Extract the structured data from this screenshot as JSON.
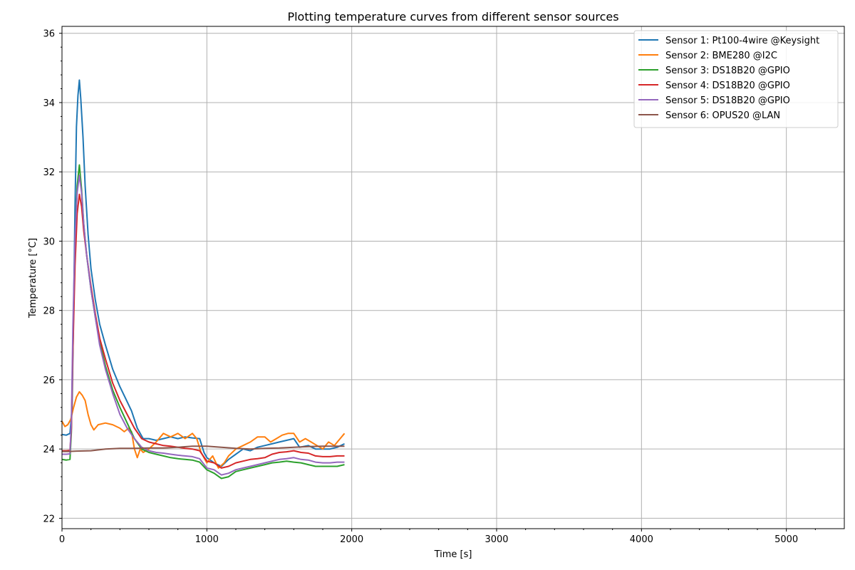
{
  "chart_data": {
    "type": "line",
    "title": "Plotting temperature curves from different sensor sources",
    "xlabel": "Time [s]",
    "ylabel": "Temperature [°C]",
    "xlim": [
      0,
      5400
    ],
    "ylim": [
      21.7,
      36.2
    ],
    "xticks": [
      0,
      1000,
      2000,
      3000,
      4000,
      5000
    ],
    "xtick_labels": [
      "0",
      "1000",
      "2000",
      "3000",
      "4000",
      "5000"
    ],
    "yticks": [
      22,
      24,
      26,
      28,
      30,
      32,
      34,
      36
    ],
    "ytick_labels": [
      "22",
      "24",
      "26",
      "28",
      "30",
      "32",
      "34",
      "36"
    ],
    "grid": true,
    "legend_position": "top-right",
    "series": [
      {
        "name": "Sensor 1: Pt100-4wire @Keysight",
        "color": "#1f77b4",
        "points": [
          [
            0,
            24.42
          ],
          [
            30,
            24.4
          ],
          [
            55,
            24.45
          ],
          [
            70,
            25.2
          ],
          [
            80,
            28
          ],
          [
            90,
            31
          ],
          [
            100,
            33.3
          ],
          [
            110,
            34.2
          ],
          [
            120,
            34.65
          ],
          [
            130,
            34.1
          ],
          [
            145,
            33
          ],
          [
            160,
            31.6
          ],
          [
            180,
            30.2
          ],
          [
            200,
            29.2
          ],
          [
            230,
            28.3
          ],
          [
            260,
            27.6
          ],
          [
            300,
            27.0
          ],
          [
            350,
            26.3
          ],
          [
            400,
            25.8
          ],
          [
            440,
            25.45
          ],
          [
            480,
            25.1
          ],
          [
            520,
            24.6
          ],
          [
            560,
            24.3
          ],
          [
            600,
            24.3
          ],
          [
            650,
            24.25
          ],
          [
            700,
            24.3
          ],
          [
            750,
            24.35
          ],
          [
            800,
            24.3
          ],
          [
            850,
            24.35
          ],
          [
            900,
            24.32
          ],
          [
            950,
            24.3
          ],
          [
            980,
            23.9
          ],
          [
            1000,
            23.75
          ],
          [
            1050,
            23.6
          ],
          [
            1100,
            23.5
          ],
          [
            1150,
            23.7
          ],
          [
            1200,
            23.85
          ],
          [
            1250,
            24.0
          ],
          [
            1300,
            23.95
          ],
          [
            1350,
            24.05
          ],
          [
            1400,
            24.1
          ],
          [
            1450,
            24.15
          ],
          [
            1500,
            24.2
          ],
          [
            1550,
            24.25
          ],
          [
            1600,
            24.3
          ],
          [
            1640,
            24.05
          ],
          [
            1700,
            24.1
          ],
          [
            1750,
            24.0
          ],
          [
            1800,
            24.0
          ],
          [
            1850,
            24.0
          ],
          [
            1900,
            24.05
          ],
          [
            1950,
            24.15
          ]
        ]
      },
      {
        "name": "Sensor 2: BME280 @I2C",
        "color": "#ff7f0e",
        "points": [
          [
            0,
            24.8
          ],
          [
            20,
            24.65
          ],
          [
            40,
            24.7
          ],
          [
            60,
            24.85
          ],
          [
            80,
            25.2
          ],
          [
            100,
            25.5
          ],
          [
            120,
            25.65
          ],
          [
            140,
            25.55
          ],
          [
            160,
            25.4
          ],
          [
            180,
            25.0
          ],
          [
            200,
            24.7
          ],
          [
            220,
            24.55
          ],
          [
            250,
            24.7
          ],
          [
            300,
            24.75
          ],
          [
            350,
            24.7
          ],
          [
            400,
            24.6
          ],
          [
            430,
            24.5
          ],
          [
            460,
            24.6
          ],
          [
            480,
            24.5
          ],
          [
            500,
            24.0
          ],
          [
            520,
            23.75
          ],
          [
            540,
            24.0
          ],
          [
            560,
            23.9
          ],
          [
            600,
            24.0
          ],
          [
            650,
            24.2
          ],
          [
            700,
            24.45
          ],
          [
            750,
            24.35
          ],
          [
            800,
            24.45
          ],
          [
            850,
            24.3
          ],
          [
            900,
            24.45
          ],
          [
            930,
            24.3
          ],
          [
            960,
            23.9
          ],
          [
            1000,
            23.6
          ],
          [
            1040,
            23.8
          ],
          [
            1080,
            23.45
          ],
          [
            1120,
            23.6
          ],
          [
            1150,
            23.8
          ],
          [
            1200,
            24.0
          ],
          [
            1250,
            24.1
          ],
          [
            1300,
            24.2
          ],
          [
            1350,
            24.35
          ],
          [
            1400,
            24.35
          ],
          [
            1440,
            24.2
          ],
          [
            1480,
            24.3
          ],
          [
            1520,
            24.4
          ],
          [
            1560,
            24.45
          ],
          [
            1600,
            24.45
          ],
          [
            1640,
            24.2
          ],
          [
            1680,
            24.3
          ],
          [
            1720,
            24.2
          ],
          [
            1760,
            24.1
          ],
          [
            1800,
            24.0
          ],
          [
            1840,
            24.2
          ],
          [
            1880,
            24.1
          ],
          [
            1920,
            24.3
          ],
          [
            1950,
            24.45
          ]
        ]
      },
      {
        "name": "Sensor 3: DS18B20 @GPIO",
        "color": "#2ca02c",
        "points": [
          [
            0,
            23.7
          ],
          [
            30,
            23.68
          ],
          [
            55,
            23.7
          ],
          [
            65,
            24.5
          ],
          [
            75,
            27
          ],
          [
            90,
            30
          ],
          [
            105,
            31.6
          ],
          [
            120,
            32.2
          ],
          [
            135,
            31.5
          ],
          [
            150,
            30.5
          ],
          [
            170,
            29.6
          ],
          [
            200,
            28.6
          ],
          [
            230,
            27.8
          ],
          [
            260,
            27.1
          ],
          [
            300,
            26.4
          ],
          [
            350,
            25.7
          ],
          [
            400,
            25.2
          ],
          [
            450,
            24.75
          ],
          [
            500,
            24.3
          ],
          [
            550,
            24.0
          ],
          [
            600,
            23.9
          ],
          [
            650,
            23.85
          ],
          [
            700,
            23.8
          ],
          [
            750,
            23.75
          ],
          [
            800,
            23.72
          ],
          [
            850,
            23.7
          ],
          [
            900,
            23.68
          ],
          [
            950,
            23.62
          ],
          [
            1000,
            23.4
          ],
          [
            1050,
            23.3
          ],
          [
            1100,
            23.15
          ],
          [
            1150,
            23.2
          ],
          [
            1200,
            23.35
          ],
          [
            1250,
            23.4
          ],
          [
            1300,
            23.45
          ],
          [
            1350,
            23.5
          ],
          [
            1400,
            23.55
          ],
          [
            1450,
            23.6
          ],
          [
            1500,
            23.62
          ],
          [
            1550,
            23.65
          ],
          [
            1600,
            23.62
          ],
          [
            1650,
            23.6
          ],
          [
            1700,
            23.55
          ],
          [
            1750,
            23.5
          ],
          [
            1800,
            23.5
          ],
          [
            1850,
            23.5
          ],
          [
            1900,
            23.5
          ],
          [
            1950,
            23.55
          ]
        ]
      },
      {
        "name": "Sensor 4: DS18B20 @GPIO",
        "color": "#d62728",
        "points": [
          [
            0,
            23.95
          ],
          [
            30,
            23.95
          ],
          [
            55,
            23.96
          ],
          [
            65,
            24.6
          ],
          [
            75,
            26.8
          ],
          [
            90,
            29.3
          ],
          [
            105,
            30.8
          ],
          [
            120,
            31.35
          ],
          [
            135,
            31.0
          ],
          [
            150,
            30.3
          ],
          [
            170,
            29.6
          ],
          [
            200,
            28.7
          ],
          [
            230,
            27.9
          ],
          [
            260,
            27.2
          ],
          [
            300,
            26.6
          ],
          [
            350,
            25.9
          ],
          [
            400,
            25.4
          ],
          [
            450,
            25.0
          ],
          [
            500,
            24.6
          ],
          [
            550,
            24.3
          ],
          [
            600,
            24.2
          ],
          [
            650,
            24.15
          ],
          [
            700,
            24.1
          ],
          [
            750,
            24.08
          ],
          [
            800,
            24.05
          ],
          [
            850,
            24.02
          ],
          [
            900,
            24.0
          ],
          [
            950,
            23.95
          ],
          [
            1000,
            23.65
          ],
          [
            1050,
            23.6
          ],
          [
            1100,
            23.45
          ],
          [
            1150,
            23.5
          ],
          [
            1200,
            23.6
          ],
          [
            1250,
            23.65
          ],
          [
            1300,
            23.7
          ],
          [
            1350,
            23.72
          ],
          [
            1400,
            23.75
          ],
          [
            1450,
            23.85
          ],
          [
            1500,
            23.9
          ],
          [
            1550,
            23.92
          ],
          [
            1600,
            23.95
          ],
          [
            1650,
            23.9
          ],
          [
            1700,
            23.88
          ],
          [
            1750,
            23.8
          ],
          [
            1800,
            23.78
          ],
          [
            1850,
            23.78
          ],
          [
            1900,
            23.8
          ],
          [
            1950,
            23.8
          ]
        ]
      },
      {
        "name": "Sensor 5: DS18B20 @GPIO",
        "color": "#9467bd",
        "points": [
          [
            0,
            23.85
          ],
          [
            30,
            23.85
          ],
          [
            55,
            23.86
          ],
          [
            65,
            24.8
          ],
          [
            75,
            27.5
          ],
          [
            90,
            30.1
          ],
          [
            105,
            31.4
          ],
          [
            120,
            31.9
          ],
          [
            135,
            31.4
          ],
          [
            150,
            30.5
          ],
          [
            170,
            29.6
          ],
          [
            200,
            28.6
          ],
          [
            230,
            27.8
          ],
          [
            260,
            27.0
          ],
          [
            300,
            26.3
          ],
          [
            350,
            25.6
          ],
          [
            400,
            25.0
          ],
          [
            450,
            24.6
          ],
          [
            500,
            24.3
          ],
          [
            550,
            24.05
          ],
          [
            600,
            23.95
          ],
          [
            650,
            23.9
          ],
          [
            700,
            23.88
          ],
          [
            750,
            23.85
          ],
          [
            800,
            23.82
          ],
          [
            850,
            23.8
          ],
          [
            900,
            23.78
          ],
          [
            950,
            23.72
          ],
          [
            1000,
            23.45
          ],
          [
            1050,
            23.4
          ],
          [
            1100,
            23.25
          ],
          [
            1150,
            23.3
          ],
          [
            1200,
            23.4
          ],
          [
            1250,
            23.45
          ],
          [
            1300,
            23.5
          ],
          [
            1350,
            23.55
          ],
          [
            1400,
            23.6
          ],
          [
            1450,
            23.65
          ],
          [
            1500,
            23.7
          ],
          [
            1550,
            23.72
          ],
          [
            1600,
            23.75
          ],
          [
            1650,
            23.7
          ],
          [
            1700,
            23.68
          ],
          [
            1750,
            23.62
          ],
          [
            1800,
            23.6
          ],
          [
            1850,
            23.6
          ],
          [
            1900,
            23.62
          ],
          [
            1950,
            23.62
          ]
        ]
      },
      {
        "name": "Sensor 6: OPUS20 @LAN",
        "color": "#8c564b",
        "points": [
          [
            0,
            23.93
          ],
          [
            50,
            23.93
          ],
          [
            100,
            23.94
          ],
          [
            200,
            23.95
          ],
          [
            300,
            24.0
          ],
          [
            400,
            24.02
          ],
          [
            500,
            24.02
          ],
          [
            600,
            24.03
          ],
          [
            700,
            24.03
          ],
          [
            800,
            24.05
          ],
          [
            900,
            24.08
          ],
          [
            1000,
            24.08
          ],
          [
            1100,
            24.05
          ],
          [
            1200,
            24.02
          ],
          [
            1300,
            24.0
          ],
          [
            1400,
            24.02
          ],
          [
            1500,
            24.03
          ],
          [
            1600,
            24.05
          ],
          [
            1700,
            24.07
          ],
          [
            1800,
            24.08
          ],
          [
            1900,
            24.08
          ],
          [
            1950,
            24.08
          ]
        ]
      }
    ]
  }
}
